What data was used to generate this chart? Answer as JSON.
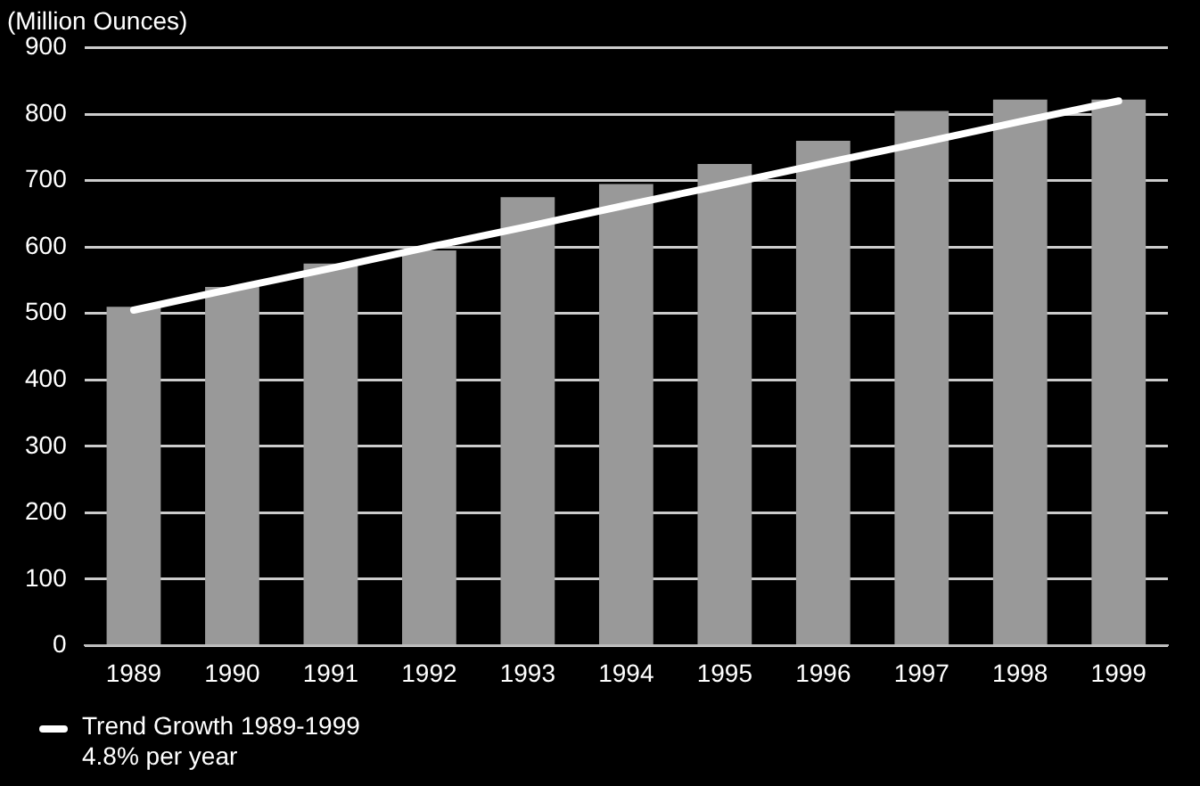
{
  "chart_data": {
    "type": "bar",
    "ylabel": "(Million Ounces)",
    "categories": [
      "1989",
      "1990",
      "1991",
      "1992",
      "1993",
      "1994",
      "1995",
      "1996",
      "1997",
      "1998",
      "1999"
    ],
    "series": [
      {
        "color": "#999999",
        "values": [
          510,
          540,
          575,
          595,
          675,
          695,
          725,
          760,
          805,
          822,
          822
        ]
      },
      {
        "type": "line",
        "name": "Trend Growth 1989-1999\n4.8% per year",
        "color": "#ffffff",
        "values": [
          505,
          537,
          568,
          600,
          631,
          663,
          694,
          726,
          757,
          789,
          820
        ]
      }
    ],
    "ylim": [
      0,
      900
    ],
    "yticks": [
      0,
      100,
      200,
      300,
      400,
      500,
      600,
      700,
      800,
      900
    ],
    "grid": "y",
    "legend": "bottom left",
    "marker": "none",
    "line_style": "solid"
  }
}
